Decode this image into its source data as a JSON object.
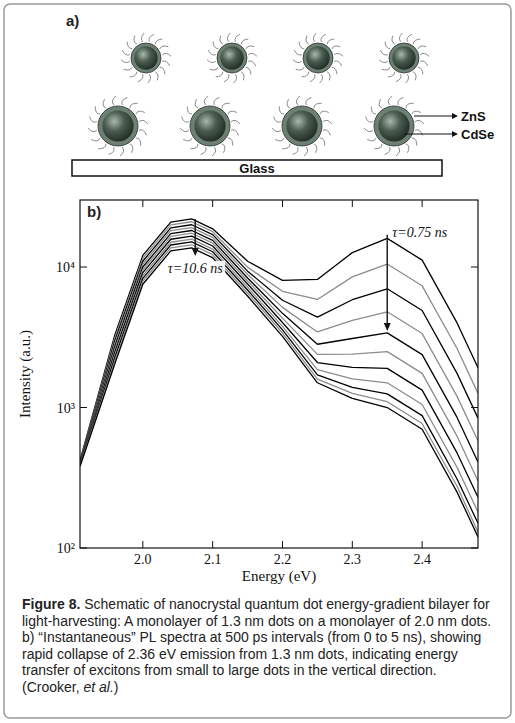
{
  "schematic": {
    "panel_label": "a)",
    "labels": [
      "ZnS",
      "CdSe"
    ],
    "substrate": "Glass"
  },
  "chart_data": {
    "type": "line",
    "panel_label": "b)",
    "x_label": "Energy (eV)",
    "y_label": "Intensity (a.u.)",
    "log": "y",
    "grid": false,
    "xlim": [
      1.91,
      2.48
    ],
    "ylim": [
      100,
      30000
    ],
    "xticks": [
      {
        "value": 2,
        "label": "2.0"
      },
      2.1,
      2.2,
      2.3,
      2.4
    ],
    "yticks": [
      {
        "value": 100,
        "label": "10²"
      },
      {
        "value": 1000,
        "label": "10³"
      },
      {
        "value": 10000,
        "label": "10⁴"
      }
    ],
    "x": [
      1.91,
      1.96,
      2.0,
      2.04,
      2.07,
      2.1,
      2.15,
      2.2,
      2.25,
      2.3,
      2.35,
      2.4,
      2.45,
      2.48
    ],
    "series": [
      {
        "color": "#000000",
        "values": [
          420,
          3300,
          12100,
          20900,
          22000,
          18700,
          11000,
          8040,
          8160,
          12660,
          16000,
          11200,
          4000,
          1920
        ]
      },
      {
        "color": "#8c8c8c",
        "values": [
          410,
          3150,
          11550,
          19950,
          21000,
          17850,
          9980,
          6720,
          5880,
          8510,
          10500,
          7350,
          2630,
          1260
        ]
      },
      {
        "color": "#000000",
        "values": [
          405,
          3000,
          11000,
          19000,
          20000,
          17000,
          9350,
          5800,
          4400,
          5850,
          7000,
          4900,
          1750,
          840
        ]
      },
      {
        "color": "#8c8c8c",
        "values": [
          400,
          2870,
          10500,
          18150,
          19100,
          16240,
          8840,
          5160,
          3450,
          4170,
          4800,
          3360,
          1200,
          580
        ]
      },
      {
        "color": "#000000",
        "values": [
          400,
          2730,
          10010,
          17290,
          18200,
          15470,
          8360,
          4680,
          2820,
          3100,
          3400,
          2380,
          850,
          410
        ]
      },
      {
        "color": "#8c8c8c",
        "values": [
          395,
          2610,
          9570,
          16530,
          17400,
          14790,
          7960,
          4330,
          2390,
          2400,
          2500,
          1750,
          625,
          300
        ]
      },
      {
        "color": "#000000",
        "values": [
          395,
          2490,
          9130,
          15770,
          16600,
          14110,
          7570,
          4030,
          2090,
          1930,
          1900,
          1330,
          475,
          230
        ]
      },
      {
        "color": "#8c8c8c",
        "values": [
          390,
          2370,
          8690,
          15010,
          15800,
          13430,
          7190,
          3780,
          1860,
          1600,
          1500,
          1050,
          375,
          180
        ]
      },
      {
        "color": "#000000",
        "values": [
          390,
          2270,
          8310,
          14350,
          15100,
          12840,
          6860,
          3570,
          1710,
          1390,
          1250,
          875,
          310,
          150
        ]
      },
      {
        "color": "#8c8c8c",
        "values": [
          385,
          2160,
          7920,
          13680,
          14400,
          12240,
          6540,
          3390,
          1590,
          1260,
          1100,
          770,
          275,
          130
        ]
      },
      {
        "color": "#000000",
        "values": [
          380,
          2060,
          7540,
          13020,
          13700,
          11650,
          6220,
          3210,
          1500,
          1160,
          1000,
          700,
          250,
          120
        ]
      }
    ],
    "annotations": [
      {
        "text": "τ=10.6 ns",
        "x": 2.075,
        "y_from": 22000,
        "y_to": 12000
      },
      {
        "text": "τ=0.75 ns",
        "x": 2.35,
        "y_from": 17000,
        "y_to": 3500
      }
    ]
  },
  "caption": {
    "title": "Figure 8.",
    "parts": [
      {
        "text": " Schematic of nanocrystal quantum dot energy-gradient bilayer for light-harvesting: A monolayer of 1.3 nm dots on a monolayer of 2.0 nm dots. b) “Instantaneous” PL spectra at 500 ps intervals (from 0 to 5 ns), showing rapid collapse of 2.36 eV emission from 1.3 nm dots, indicating energy transfer of excitons from small to large dots in the vertical direction. (Crooker, "
      },
      {
        "text": "et al.",
        "italic": true
      },
      {
        "text": ")"
      }
    ]
  }
}
